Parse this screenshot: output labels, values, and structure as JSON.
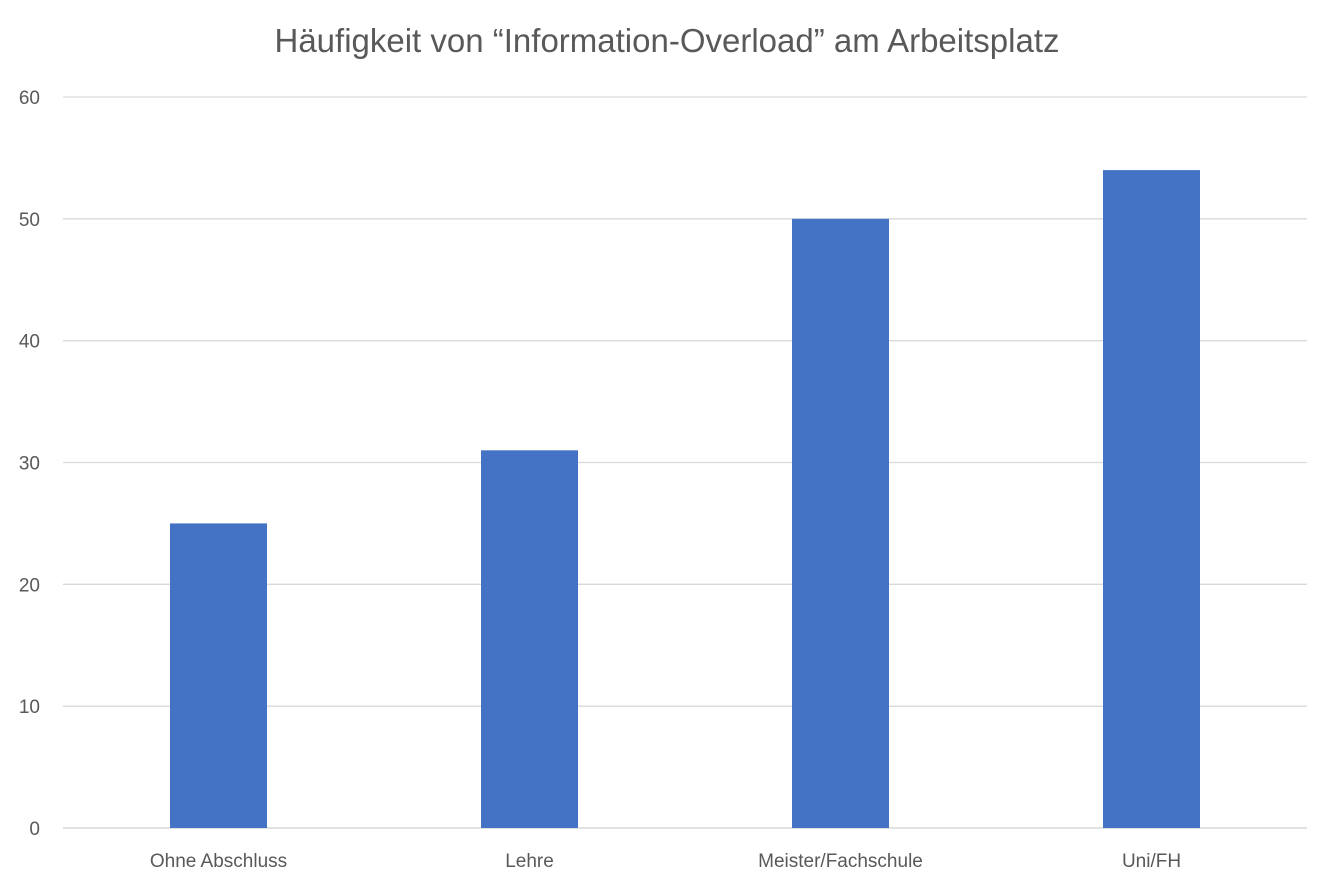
{
  "chart_data": {
    "type": "bar",
    "title": "Häufigkeit von “Information-Overload” am Arbeitsplatz",
    "categories": [
      "Ohne Abschluss",
      "Lehre",
      "Meister/Fachschule",
      "Uni/FH"
    ],
    "series": [
      {
        "values": [
          25,
          31,
          50,
          54
        ],
        "color": "#4472c4"
      }
    ],
    "xlabel": "",
    "ylabel": "",
    "ylim": [
      0,
      60
    ],
    "yticks": [
      0,
      10,
      20,
      30,
      40,
      50,
      60
    ],
    "grid": true,
    "legend": "none"
  }
}
